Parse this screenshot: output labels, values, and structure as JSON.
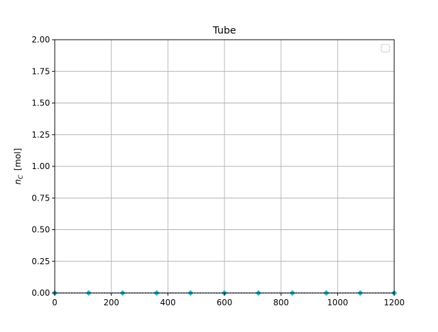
{
  "chart_data": {
    "type": "line",
    "title": "Tube",
    "xlabel": "",
    "ylabel": {
      "symbol": "n",
      "subscript": "C",
      "unit": "[mol]"
    },
    "xlim": [
      0,
      1200
    ],
    "ylim": [
      0,
      2.0
    ],
    "xticks": [
      0,
      200,
      400,
      600,
      800,
      1000,
      1200
    ],
    "xtick_labels": [
      "0",
      "200",
      "400",
      "600",
      "800",
      "1000",
      "1200"
    ],
    "yticks": [
      0,
      0.25,
      0.5,
      0.75,
      1.0,
      1.25,
      1.5,
      1.75,
      2.0
    ],
    "ytick_labels": [
      "0.00",
      "0.25",
      "0.50",
      "0.75",
      "1.00",
      "1.25",
      "1.50",
      "1.75",
      "2.00"
    ],
    "grid": true,
    "legend": {
      "placement": "top-right",
      "entries": []
    },
    "series": [
      {
        "color": "#1f2fb4",
        "line_style": "dotted",
        "marker": "none",
        "x": [
          0,
          120,
          240,
          360,
          480,
          600,
          720,
          840,
          960,
          1080,
          1200
        ],
        "values": [
          0,
          0,
          0,
          0,
          0,
          0,
          0,
          0,
          0,
          0,
          0
        ]
      },
      {
        "color": "#17becf",
        "line_style": "none",
        "marker": "diamond",
        "x": [
          0,
          120,
          240,
          360,
          480,
          600,
          720,
          840,
          960,
          1080,
          1200
        ],
        "values": [
          0,
          0,
          0,
          0,
          0,
          0,
          0,
          0,
          0,
          0,
          0
        ]
      }
    ]
  }
}
